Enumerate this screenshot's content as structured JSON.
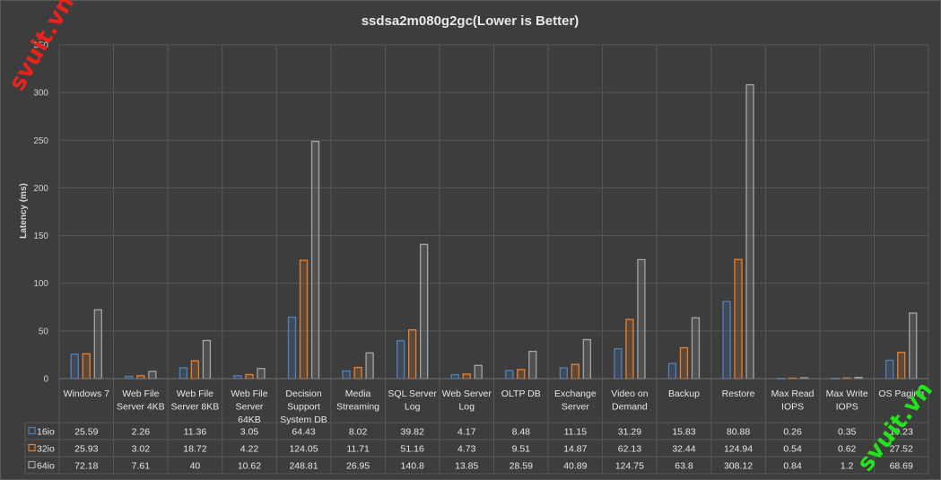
{
  "chart_data": {
    "type": "bar",
    "title": "ssdsa2m080g2gc(Lower is Better)",
    "ylabel": "Latency (ms)",
    "ylim": [
      0,
      350
    ],
    "yticks": [
      0,
      50,
      100,
      150,
      200,
      250,
      300,
      350
    ],
    "grid": true,
    "data_table": true,
    "categories": [
      "Windows 7",
      "Web File Server 4KB",
      "Web File Server 8KB",
      "Web File Server 64KB",
      "Decision Support System DB",
      "Media Streaming",
      "SQL Server Log",
      "Web Server Log",
      "OLTP DB",
      "Exchange Server",
      "Video on Demand",
      "Backup",
      "Restore",
      "Max Read IOPS",
      "Max Write IOPS",
      "OS Paging"
    ],
    "category_lines": [
      [
        "Windows 7"
      ],
      [
        "Web File",
        "Server 4KB"
      ],
      [
        "Web File",
        "Server 8KB"
      ],
      [
        "Web File",
        "Server",
        "64KB"
      ],
      [
        "Decision",
        "Support",
        "System DB"
      ],
      [
        "Media",
        "Streaming"
      ],
      [
        "SQL Server",
        "Log"
      ],
      [
        "Web Server",
        "Log"
      ],
      [
        "OLTP DB"
      ],
      [
        "Exchange",
        "Server"
      ],
      [
        "Video on",
        "Demand"
      ],
      [
        "Backup"
      ],
      [
        "Restore"
      ],
      [
        "Max Read",
        "IOPS"
      ],
      [
        "Max Write",
        "IOPS"
      ],
      [
        "OS Paging"
      ]
    ],
    "series": [
      {
        "name": "16io",
        "color": "#4f81bd",
        "values": [
          25.59,
          2.26,
          11.36,
          3.05,
          64.43,
          8.02,
          39.82,
          4.17,
          8.48,
          11.15,
          31.29,
          15.83,
          80.88,
          0.26,
          0.35,
          19.23
        ],
        "labels": [
          "25.59",
          "2.26",
          "11.36",
          "3.05",
          "64.43",
          "8.02",
          "39.82",
          "4.17",
          "8.48",
          "11.15",
          "31.29",
          "15.83",
          "80.88",
          "0.26",
          "0.35",
          "19.23"
        ]
      },
      {
        "name": "32io",
        "color": "#e8802e",
        "values": [
          25.93,
          3.02,
          18.72,
          4.22,
          124.05,
          11.71,
          51.16,
          4.73,
          9.51,
          14.87,
          62.13,
          32.44,
          124.94,
          0.54,
          0.62,
          27.52
        ],
        "labels": [
          "25.93",
          "3.02",
          "18.72",
          "4.22",
          "124.05",
          "11.71",
          "51.16",
          "4.73",
          "9.51",
          "14.87",
          "62.13",
          "32.44",
          "124.94",
          "0.54",
          "0.62",
          "27.52"
        ]
      },
      {
        "name": "64io",
        "color": "#a5a5a5",
        "values": [
          72.18,
          7.61,
          40,
          10.62,
          248.81,
          26.95,
          140.8,
          13.85,
          28.59,
          40.89,
          124.75,
          63.8,
          308.12,
          0.84,
          1.2,
          68.69
        ],
        "labels": [
          "72.18",
          "7.61",
          "40",
          "10.62",
          "248.81",
          "26.95",
          "140.8",
          "13.85",
          "28.59",
          "40.89",
          "124.75",
          "63.8",
          "308.12",
          "0.84",
          "1.2",
          "68.69"
        ]
      }
    ]
  },
  "watermarks": {
    "top_left": "svuit.vn",
    "bottom_right": "svuit.vn",
    "colors": {
      "top_left": "#e8231c",
      "bottom_right": "#22e31c"
    }
  }
}
